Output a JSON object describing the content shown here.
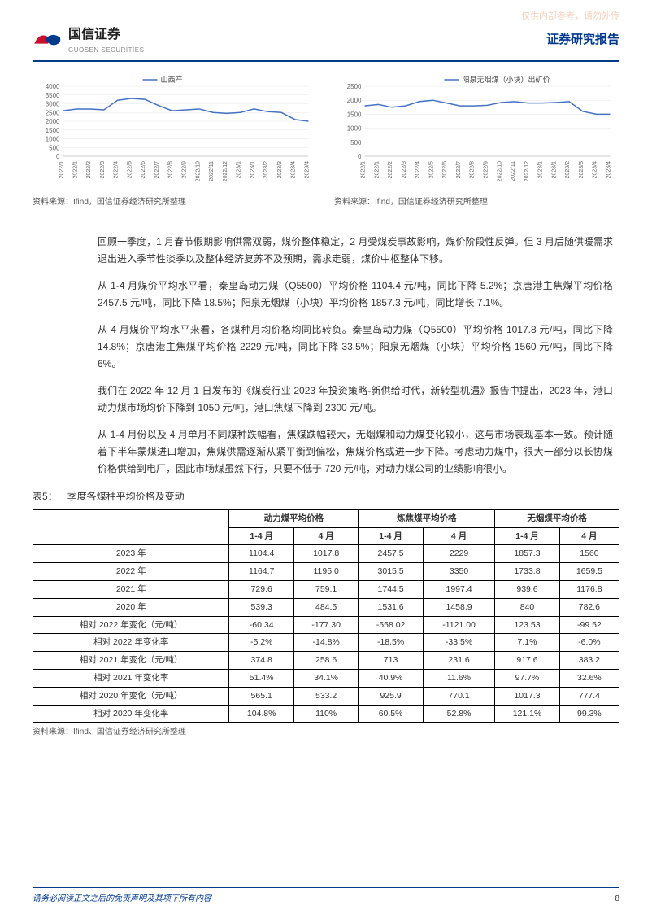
{
  "watermark": "仅供内部参考，请勿外传",
  "header": {
    "logo_cn": "国信证券",
    "logo_en": "GUOSEN SECURITIES",
    "title": "证券研究报告",
    "brand_navy": "#003a8c",
    "brand_red": "#c8102e"
  },
  "chart_left": {
    "type": "line",
    "legend": "山西产",
    "legend_color": "#4472c4",
    "ylim": [
      0,
      4000
    ],
    "ytick_step": 500,
    "x_labels": [
      "2022/1",
      "2022/1",
      "2022/2",
      "2022/3",
      "2022/4",
      "2022/5",
      "2022/6",
      "2022/7",
      "2022/8",
      "2022/9",
      "2022/10",
      "2022/11",
      "2022/12",
      "2023/1",
      "2023/1",
      "2023/2",
      "2023/3",
      "2023/4",
      "2023/4"
    ],
    "values": [
      2600,
      2700,
      2700,
      2650,
      3200,
      3300,
      3250,
      2900,
      2600,
      2650,
      2700,
      2500,
      2450,
      2500,
      2700,
      2550,
      2500,
      2100,
      2000
    ],
    "grid_color": "#e6e6e6",
    "axis_color": "#cccccc",
    "tick_fontsize": 8,
    "line_width": 1.5,
    "background": "#ffffff",
    "source": "资料来源：Ifind，国信证券经济研究所整理"
  },
  "chart_right": {
    "type": "line",
    "legend": "阳泉无烟煤（小块）出矿价",
    "legend_color": "#4472c4",
    "ylim": [
      0,
      2500
    ],
    "ytick_step": 500,
    "x_labels": [
      "2022/1",
      "2022/1",
      "2022/2",
      "2022/3",
      "2022/4",
      "2022/5",
      "2022/6",
      "2022/7",
      "2022/8",
      "2022/9",
      "2022/10",
      "2022/11",
      "2022/12",
      "2023/1",
      "2023/1",
      "2023/2",
      "2023/3",
      "2023/4",
      "2023/4"
    ],
    "values": [
      1800,
      1850,
      1750,
      1800,
      1950,
      2000,
      1900,
      1800,
      1800,
      1820,
      1920,
      1950,
      1900,
      1900,
      1920,
      1950,
      1600,
      1500,
      1500
    ],
    "grid_color": "#e6e6e6",
    "axis_color": "#cccccc",
    "tick_fontsize": 8,
    "line_width": 1.5,
    "background": "#ffffff",
    "source": "资料来源：Ifind，国信证券经济研究所整理"
  },
  "paragraphs": [
    "回顾一季度，1 月春节假期影响供需双弱，煤价整体稳定，2 月受煤炭事故影响，煤价阶段性反弹。但 3 月后随供暖需求退出进入季节性淡季以及整体经济复苏不及预期，需求走弱，煤价中枢整体下移。",
    "从 1-4 月煤价平均水平看，秦皇岛动力煤（Q5500）平均价格 1104.4 元/吨，同比下降 5.2%；京唐港主焦煤平均价格 2457.5 元/吨，同比下降 18.5%；阳泉无烟煤（小块）平均价格 1857.3 元/吨，同比增长 7.1%。",
    "从 4 月煤价平均水平来看，各煤种月均价格均同比转负。秦皇岛动力煤（Q5500）平均价格 1017.8 元/吨，同比下降 14.8%；京唐港主焦煤平均价格 2229 元/吨，同比下降 33.5%；阳泉无烟煤（小块）平均价格 1560 元/吨，同比下降 6%。",
    "我们在 2022 年 12 月 1 日发布的《煤炭行业 2023 年投资策略-新供给时代，新转型机遇》报告中提出，2023 年，港口动力煤市场均价下降到 1050 元/吨，港口焦煤下降到 2300 元/吨。",
    "从 1-4 月份以及 4 月单月不同煤种跌幅看，焦煤跌幅较大，无烟煤和动力煤变化较小，这与市场表现基本一致。预计随着下半年蒙煤进口增加，焦煤供需逐渐从紧平衡到偏松，焦煤价格或进一步下降。考虑动力煤中，很大一部分以长协煤价格供给到电厂，因此市场煤虽然下行，只要不低于 720 元/吨，对动力煤公司的业绩影响很小。"
  ],
  "table": {
    "title": "表5：一季度各煤种平均价格及变动",
    "group_headers": [
      "",
      "动力煤平均价格",
      "炼焦煤平均价格",
      "无烟煤平均价格"
    ],
    "sub_headers": [
      "",
      "1-4 月",
      "4 月",
      "1-4 月",
      "4 月",
      "1-4 月",
      "4 月"
    ],
    "rows": [
      [
        "2023 年",
        "1104.4",
        "1017.8",
        "2457.5",
        "2229",
        "1857.3",
        "1560"
      ],
      [
        "2022 年",
        "1164.7",
        "1195.0",
        "3015.5",
        "3350",
        "1733.8",
        "1659.5"
      ],
      [
        "2021 年",
        "729.6",
        "759.1",
        "1744.5",
        "1997.4",
        "939.6",
        "1176.8"
      ],
      [
        "2020 年",
        "539.3",
        "484.5",
        "1531.6",
        "1458.9",
        "840",
        "782.6"
      ],
      [
        "相对 2022 年变化（元/吨）",
        "-60.34",
        "-177.30",
        "-558.02",
        "-1121.00",
        "123.53",
        "-99.52"
      ],
      [
        "相对 2022 年变化率",
        "-5.2%",
        "-14.8%",
        "-18.5%",
        "-33.5%",
        "7.1%",
        "-6.0%"
      ],
      [
        "相对 2021 年变化（元/吨）",
        "374.8",
        "258.6",
        "713",
        "231.6",
        "917.6",
        "383.2"
      ],
      [
        "相对 2021 年变化率",
        "51.4%",
        "34.1%",
        "40.9%",
        "11.6%",
        "97.7%",
        "32.6%"
      ],
      [
        "相对 2020 年变化（元/吨）",
        "565.1",
        "533.2",
        "925.9",
        "770.1",
        "1017.3",
        "777.4"
      ],
      [
        "相对 2020 年变化率",
        "104.8%",
        "110%",
        "60.5%",
        "52.8%",
        "121.1%",
        "99.3%"
      ]
    ],
    "source": "资料来源：Ifind、国信证券经济研究所整理"
  },
  "footer": {
    "disclaimer": "请务必阅读正文之后的免责声明及其项下所有内容",
    "page": "8"
  }
}
